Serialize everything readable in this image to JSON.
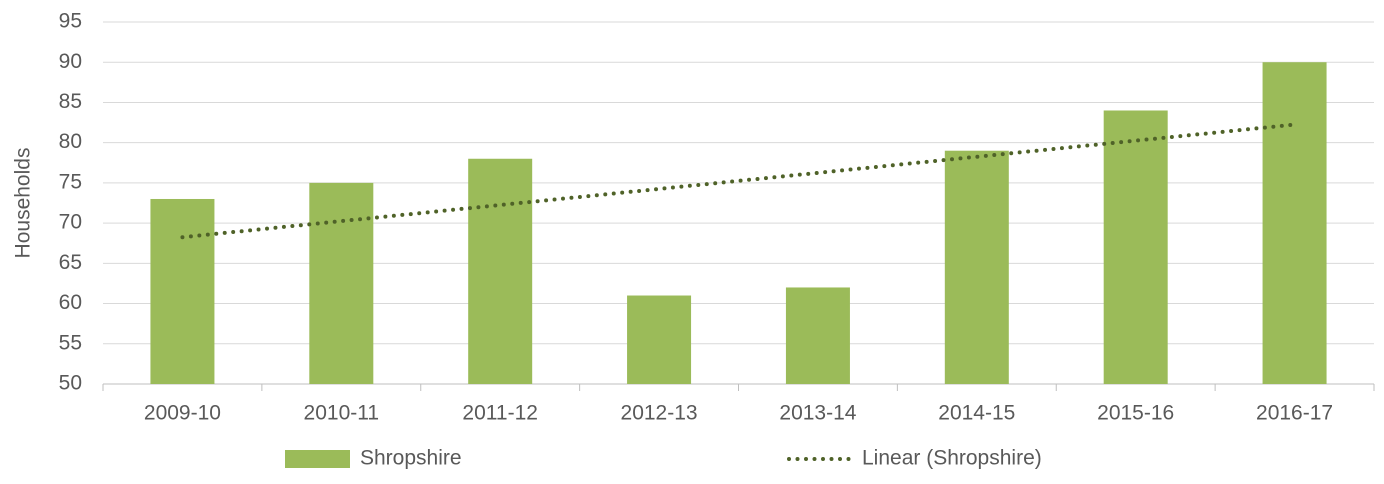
{
  "chart_data": {
    "type": "bar",
    "y_label": "Households",
    "categories": [
      "2009-10",
      "2010-11",
      "2011-12",
      "2012-13",
      "2013-14",
      "2014-15",
      "2015-16",
      "2016-17"
    ],
    "series": [
      {
        "name": "Shropshire",
        "type": "bar",
        "color": "#9bbb59",
        "values": [
          73,
          75,
          78,
          61,
          62,
          79,
          84,
          90
        ]
      },
      {
        "name": "Linear (Shropshire)",
        "type": "line",
        "dash": "dotted",
        "color": "#4f6228",
        "values": [
          68.25,
          70.25,
          72.25,
          74.25,
          76.25,
          78.25,
          80.25,
          82.25
        ]
      }
    ],
    "ylim": [
      50,
      95
    ],
    "yticks": [
      50,
      55,
      60,
      65,
      70,
      75,
      80,
      85,
      90,
      95
    ],
    "grid": true,
    "legend": "bottom"
  }
}
